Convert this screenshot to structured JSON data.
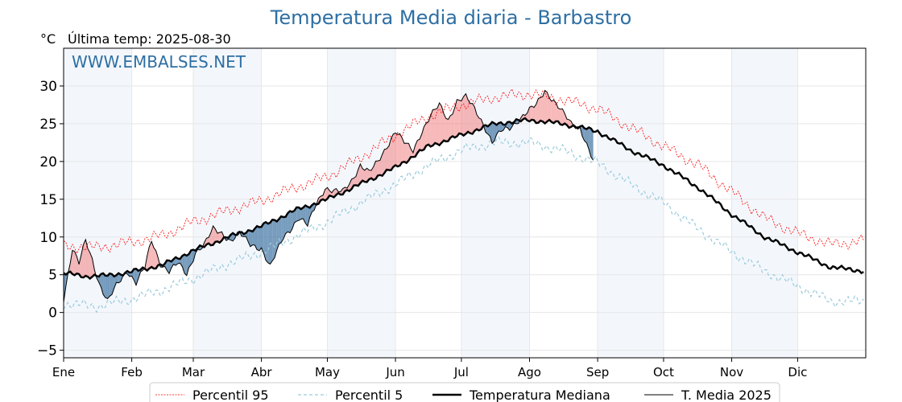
{
  "chart_data": {
    "type": "line",
    "title": "Temperatura Media diaria - Barbastro",
    "unit_label": "°C",
    "last_temp_label": "Última temp: 2025-08-30",
    "watermark": "WWW.EMBALSES.NET",
    "xlabel": "",
    "ylabel": "",
    "ylim": [
      -6,
      35
    ],
    "y_ticks": [
      -5,
      0,
      5,
      10,
      15,
      20,
      25,
      30
    ],
    "y_tick_labels": [
      "−5",
      "0",
      "5",
      "10",
      "15",
      "20",
      "25",
      "30"
    ],
    "x_tick_labels": [
      "Ene",
      "Feb",
      "Mar",
      "Abr",
      "May",
      "Jun",
      "Jul",
      "Ago",
      "Sep",
      "Oct",
      "Nov",
      "Dic"
    ],
    "x_tick_days": [
      0,
      31,
      59,
      90,
      120,
      151,
      181,
      212,
      243,
      273,
      304,
      334
    ],
    "days_in_year": 365,
    "grid": true,
    "legend_position": "bottom",
    "legend": [
      {
        "key": "p95",
        "label": "Percentil 95"
      },
      {
        "key": "p5",
        "label": "Percentil 5"
      },
      {
        "key": "median",
        "label": "Temperatura Mediana"
      },
      {
        "key": "current",
        "label": "T. Media 2025"
      }
    ],
    "colors": {
      "title": "#2e6fa3",
      "watermark": "#2e6fa3",
      "p95": "#ff0000",
      "p5": "#9ccbdc",
      "median": "#000000",
      "current": "#000000",
      "above_fill": "#f08080",
      "below_fill": "#4a7ba7",
      "month_band": "#dce8f5"
    },
    "series_anchors": {
      "median": [
        [
          0,
          5.2
        ],
        [
          10,
          4.8
        ],
        [
          20,
          4.9
        ],
        [
          31,
          5.4
        ],
        [
          45,
          6.3
        ],
        [
          59,
          8.2
        ],
        [
          75,
          10.0
        ],
        [
          90,
          11.4
        ],
        [
          105,
          13.5
        ],
        [
          120,
          15.0
        ],
        [
          135,
          17.0
        ],
        [
          151,
          19.2
        ],
        [
          166,
          22.0
        ],
        [
          181,
          23.5
        ],
        [
          196,
          25.0
        ],
        [
          212,
          25.5
        ],
        [
          227,
          25.0
        ],
        [
          243,
          24.0
        ],
        [
          258,
          21.5
        ],
        [
          273,
          19.5
        ],
        [
          289,
          16.5
        ],
        [
          304,
          13.0
        ],
        [
          319,
          10.0
        ],
        [
          334,
          8.0
        ],
        [
          349,
          6.0
        ],
        [
          364,
          5.5
        ]
      ],
      "p95": [
        [
          0,
          8.8
        ],
        [
          15,
          8.6
        ],
        [
          31,
          9.3
        ],
        [
          45,
          10.2
        ],
        [
          59,
          12.0
        ],
        [
          75,
          13.5
        ],
        [
          90,
          14.8
        ],
        [
          105,
          16.5
        ],
        [
          120,
          18.0
        ],
        [
          135,
          20.5
        ],
        [
          151,
          23.5
        ],
        [
          166,
          26.0
        ],
        [
          181,
          27.5
        ],
        [
          196,
          28.5
        ],
        [
          212,
          29.0
        ],
        [
          227,
          28.2
        ],
        [
          243,
          27.0
        ],
        [
          258,
          24.5
        ],
        [
          273,
          22.0
        ],
        [
          289,
          19.5
        ],
        [
          304,
          16.0
        ],
        [
          319,
          12.5
        ],
        [
          334,
          10.5
        ],
        [
          349,
          9.0
        ],
        [
          364,
          9.5
        ]
      ],
      "p5": [
        [
          0,
          1.2
        ],
        [
          15,
          0.8
        ],
        [
          31,
          1.8
        ],
        [
          45,
          3.0
        ],
        [
          59,
          4.5
        ],
        [
          75,
          6.5
        ],
        [
          90,
          8.0
        ],
        [
          105,
          10.0
        ],
        [
          120,
          12.0
        ],
        [
          135,
          14.5
        ],
        [
          151,
          17.0
        ],
        [
          166,
          19.5
        ],
        [
          181,
          21.5
        ],
        [
          196,
          22.5
        ],
        [
          212,
          22.5
        ],
        [
          227,
          21.5
        ],
        [
          243,
          19.8
        ],
        [
          258,
          17.0
        ],
        [
          273,
          14.5
        ],
        [
          289,
          11.0
        ],
        [
          304,
          8.0
        ],
        [
          319,
          5.5
        ],
        [
          334,
          3.5
        ],
        [
          349,
          1.5
        ],
        [
          364,
          1.5
        ]
      ],
      "current": [
        [
          0,
          1.8
        ],
        [
          4,
          8.5
        ],
        [
          7,
          6.5
        ],
        [
          10,
          9.5
        ],
        [
          13,
          7.0
        ],
        [
          16,
          4.0
        ],
        [
          20,
          1.5
        ],
        [
          24,
          3.5
        ],
        [
          29,
          5.5
        ],
        [
          33,
          4.0
        ],
        [
          37,
          6.0
        ],
        [
          40,
          9.5
        ],
        [
          44,
          6.5
        ],
        [
          48,
          5.5
        ],
        [
          52,
          6.5
        ],
        [
          56,
          5.0
        ],
        [
          60,
          8.0
        ],
        [
          64,
          9.0
        ],
        [
          68,
          11.0
        ],
        [
          72,
          10.5
        ],
        [
          76,
          9.5
        ],
        [
          80,
          10.5
        ],
        [
          85,
          9.0
        ],
        [
          90,
          8.5
        ],
        [
          94,
          6.0
        ],
        [
          97,
          8.0
        ],
        [
          100,
          10.0
        ],
        [
          103,
          11.0
        ],
        [
          107,
          12.5
        ],
        [
          111,
          11.5
        ],
        [
          115,
          14.5
        ],
        [
          119,
          16.5
        ],
        [
          123,
          16.0
        ],
        [
          127,
          16.0
        ],
        [
          131,
          17.5
        ],
        [
          135,
          19.5
        ],
        [
          139,
          18.5
        ],
        [
          143,
          20.0
        ],
        [
          147,
          22.0
        ],
        [
          151,
          24.0
        ],
        [
          155,
          22.5
        ],
        [
          159,
          21.5
        ],
        [
          163,
          24.0
        ],
        [
          167,
          26.0
        ],
        [
          171,
          27.5
        ],
        [
          175,
          25.5
        ],
        [
          179,
          28.0
        ],
        [
          183,
          28.5
        ],
        [
          187,
          27.0
        ],
        [
          191,
          25.0
        ],
        [
          195,
          22.5
        ],
        [
          199,
          24.0
        ],
        [
          203,
          24.5
        ],
        [
          207,
          25.5
        ],
        [
          211,
          26.5
        ],
        [
          215,
          27.5
        ],
        [
          219,
          29.5
        ],
        [
          223,
          28.0
        ],
        [
          227,
          26.5
        ],
        [
          231,
          25.0
        ],
        [
          235,
          24.5
        ],
        [
          239,
          21.5
        ],
        [
          241,
          20.0
        ]
      ]
    },
    "median_smooth_note_excluded": true
  }
}
